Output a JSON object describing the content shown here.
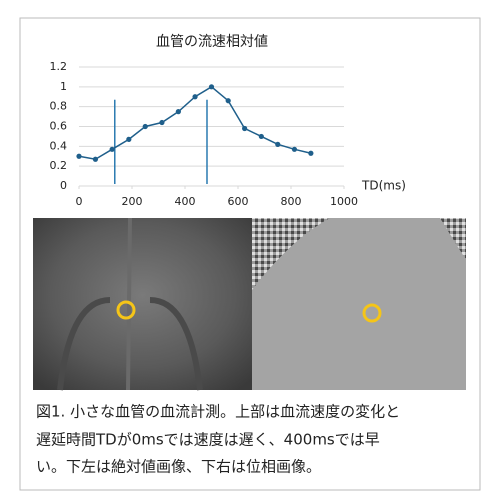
{
  "chart_data": {
    "type": "line",
    "title": "血管の流速相対値",
    "x_label": "TD(ms)",
    "x": [
      0,
      62,
      125,
      188,
      250,
      313,
      375,
      438,
      500,
      563,
      625,
      688,
      750,
      813,
      875
    ],
    "series": [
      {
        "color": "#1f5f8b",
        "values": [
          0.3,
          0.27,
          0.37,
          0.47,
          0.6,
          0.64,
          0.75,
          0.9,
          1.0,
          0.86,
          0.58,
          0.5,
          0.42,
          0.37,
          0.33
        ]
      }
    ],
    "reference_lines": [
      {
        "x": 135,
        "ymin": 0.02,
        "ymax": 0.87
      },
      {
        "x": 483,
        "ymin": 0.02,
        "ymax": 0.87
      }
    ],
    "reference_color": "#2a7ab0",
    "xlim": [
      0,
      1000
    ],
    "xticks": [
      0,
      200,
      400,
      600,
      800,
      1000
    ],
    "ylim": [
      0,
      1.2
    ],
    "yticks": [
      0,
      0.2,
      0.4,
      0.6,
      0.8,
      1,
      1.2
    ],
    "grid": true
  },
  "caption": [
    "図1. 小さな血管の血流計測。上部は血流速度の変化と",
    "遅延時間TDが0msでは速度は遅く、400msでは早",
    "い。下左は絶対値画像、下右は位相画像。"
  ]
}
